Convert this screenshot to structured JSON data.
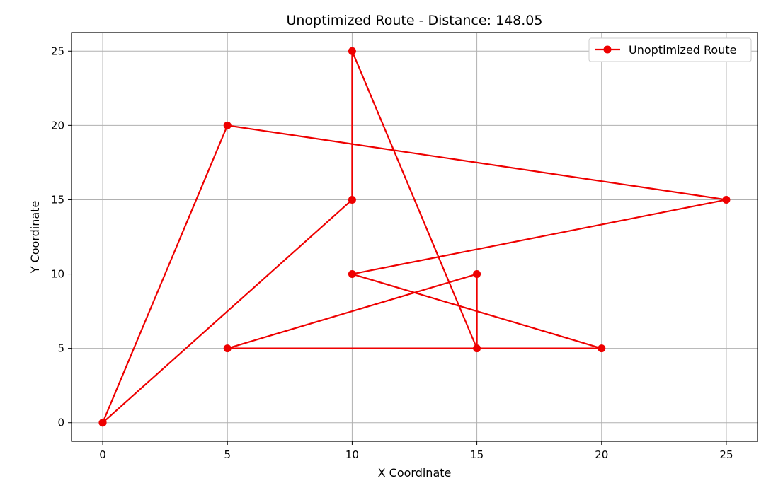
{
  "chart_data": {
    "type": "line",
    "title": "Unoptimized Route - Distance: 148.05",
    "xlabel": "X Coordinate",
    "ylabel": "Y Coordinate",
    "xlim": [
      -1.25,
      26.25
    ],
    "ylim": [
      -1.25,
      26.25
    ],
    "xticks": [
      0,
      5,
      10,
      15,
      20,
      25
    ],
    "yticks": [
      0,
      5,
      10,
      15,
      20,
      25
    ],
    "grid": true,
    "legend_position": "top-right",
    "series": [
      {
        "name": "Unoptimized Route",
        "color": "#ee0000",
        "marker": "circle",
        "x": [
          0,
          5,
          25,
          10,
          20,
          5,
          15,
          15,
          10,
          10,
          0
        ],
        "y": [
          0,
          20,
          15,
          10,
          5,
          5,
          10,
          5,
          25,
          15,
          0
        ]
      }
    ]
  }
}
